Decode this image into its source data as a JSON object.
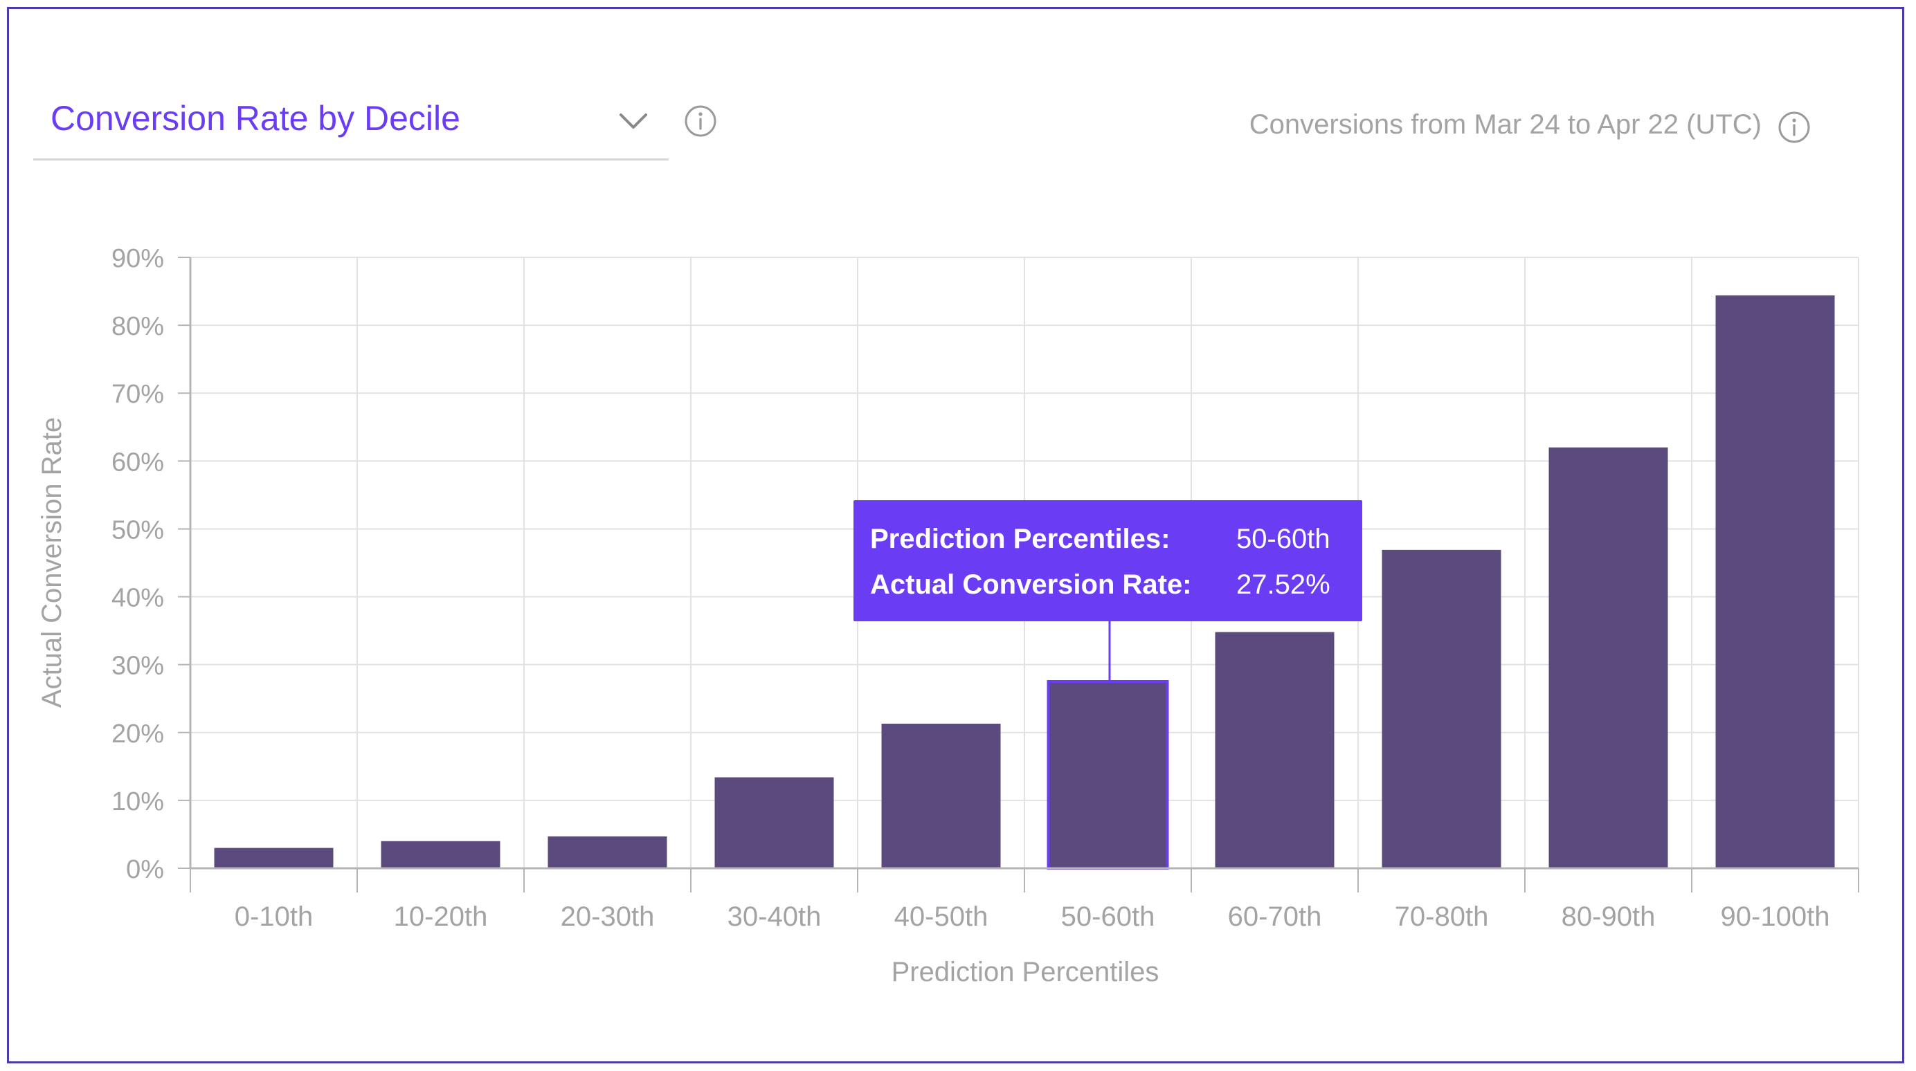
{
  "header": {
    "metric_select": {
      "selected": "Conversion Rate by Decile"
    },
    "date_range": "Conversions from Mar 24 to Apr 22 (UTC)",
    "icons": {
      "dropdown": "chevron-down-icon",
      "info": "info-icon"
    }
  },
  "colors": {
    "accent": "#6a3cf4",
    "bar": "#5b4a7e",
    "highlighted_bar_outline": "#6a3cf4"
  },
  "chart_data": {
    "type": "bar",
    "title": "",
    "xlabel": "Prediction Percentiles",
    "ylabel": "Actual Conversion Rate",
    "categories": [
      "0-10th",
      "10-20th",
      "20-30th",
      "30-40th",
      "40-50th",
      "50-60th",
      "60-70th",
      "70-80th",
      "80-90th",
      "90-100th"
    ],
    "values": [
      3,
      4,
      4.7,
      13.4,
      21.3,
      27.52,
      34.8,
      46.9,
      62,
      84.4
    ],
    "unit": "%",
    "ylim": [
      0,
      90
    ],
    "yticks": [
      "0%",
      "10%",
      "20%",
      "30%",
      "40%",
      "50%",
      "60%",
      "70%",
      "80%",
      "90%"
    ],
    "grid": true,
    "highlighted_category": "50-60th"
  },
  "tooltip": {
    "percentile_label": "Prediction Percentiles:",
    "percentile_value": "50-60th",
    "rate_label": "Actual Conversion Rate:",
    "rate_value": "27.52%"
  }
}
